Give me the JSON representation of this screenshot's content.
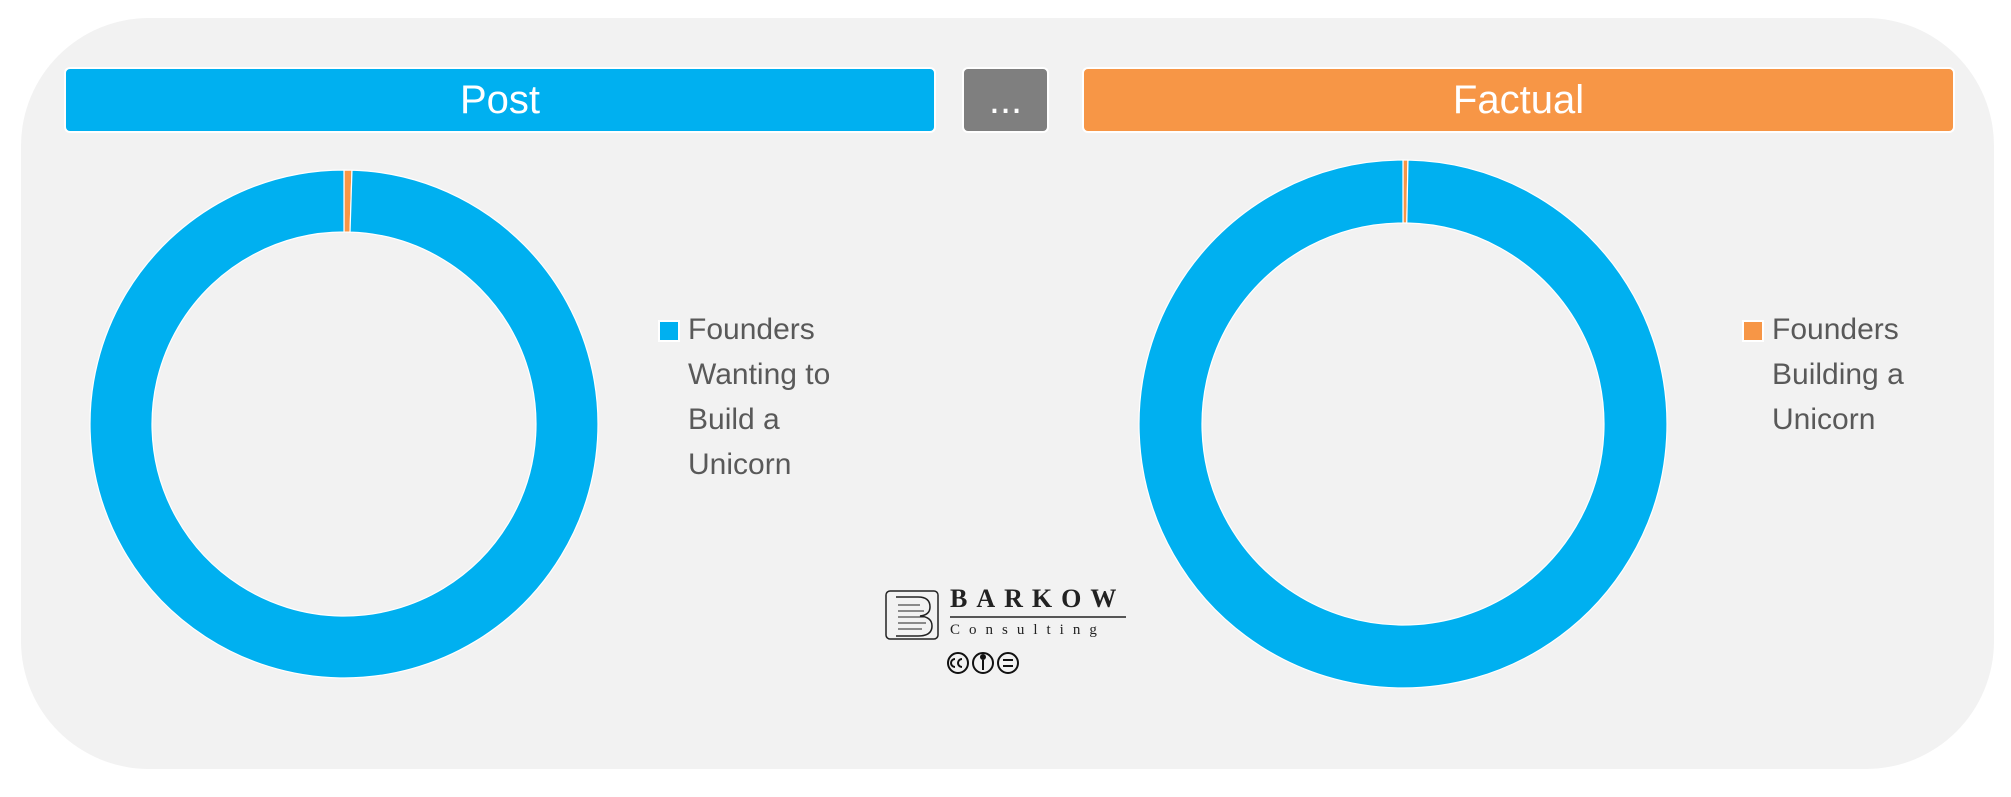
{
  "header": {
    "middle": "..."
  },
  "logo": {
    "name": "BARKOW",
    "tagline": "Consulting"
  },
  "chart_data": [
    {
      "type": "donut",
      "title": "Post",
      "title_color": "#00b0f0",
      "categories": [
        null,
        "Founders Wanting to Build a Unicorn"
      ],
      "values": [
        0.5,
        99.5
      ],
      "colors": [
        "#f79646",
        "#00b0f0"
      ]
    },
    {
      "type": "donut",
      "title": "Factual",
      "title_color": "#f79646",
      "categories": [
        "Founders Building a Unicorn",
        null
      ],
      "values": [
        0.3,
        99.7
      ],
      "colors": [
        "#f79646",
        "#00b0f0"
      ]
    }
  ]
}
